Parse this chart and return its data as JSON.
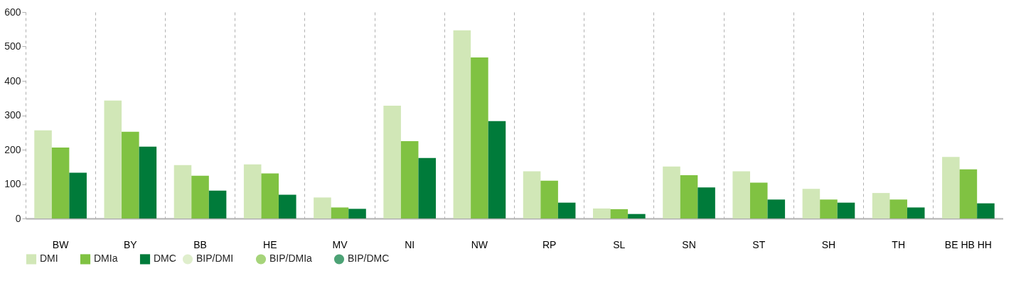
{
  "chart_data": {
    "type": "bar",
    "categories": [
      "BW",
      "BY",
      "BB",
      "HE",
      "MV",
      "NI",
      "NW",
      "RP",
      "SL",
      "SN",
      "ST",
      "SH",
      "TH",
      "BE HB HH"
    ],
    "series": [
      {
        "name": "DMI",
        "color": "#d1e7b7",
        "values": [
          256,
          343,
          155,
          157,
          61,
          328,
          547,
          137,
          29,
          151,
          137,
          86,
          74,
          179
        ]
      },
      {
        "name": "DMIa",
        "color": "#80c242",
        "values": [
          206,
          252,
          124,
          131,
          32,
          225,
          468,
          110,
          27,
          126,
          104,
          55,
          55,
          143
        ]
      },
      {
        "name": "DMC",
        "color": "#007b3a",
        "values": [
          133,
          209,
          81,
          69,
          28,
          176,
          283,
          46,
          13,
          90,
          55,
          46,
          32,
          44
        ]
      },
      {
        "name": "BIP/DMI",
        "type": "scatter",
        "color": "#d1e7b7",
        "values": [
          null,
          null,
          null,
          null,
          null,
          null,
          null,
          null,
          null,
          null,
          null,
          null,
          null,
          null
        ]
      },
      {
        "name": "BIP/DMIa",
        "type": "scatter",
        "color": "#80c242",
        "values": [
          null,
          null,
          null,
          null,
          null,
          null,
          null,
          null,
          null,
          null,
          null,
          null,
          null,
          null
        ]
      },
      {
        "name": "BIP/DMC",
        "type": "scatter",
        "color": "#007b3a",
        "values": [
          null,
          null,
          null,
          null,
          null,
          null,
          null,
          null,
          null,
          null,
          null,
          null,
          null,
          null
        ]
      }
    ],
    "ylim": [
      0,
      600
    ],
    "yticks": [
      0,
      100,
      200,
      300,
      400,
      500,
      600
    ],
    "grid": "x",
    "legend": "bottom",
    "marker": "circle"
  }
}
